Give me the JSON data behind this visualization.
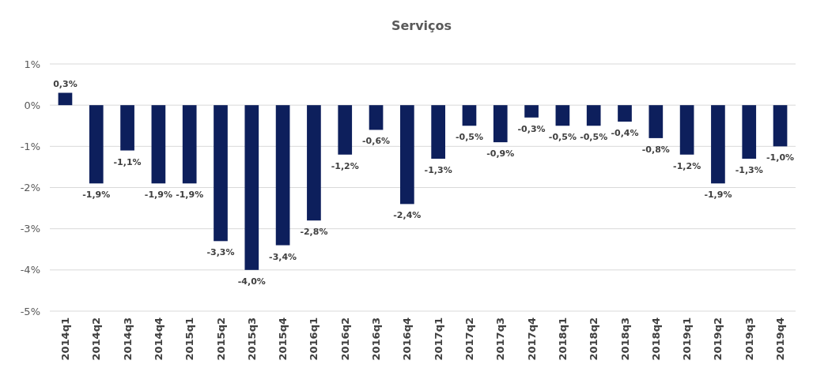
{
  "chart_data": {
    "type": "bar",
    "title": "Serviços",
    "categories": [
      "2014q1",
      "2014q2",
      "2014q3",
      "2014q4",
      "2015q1",
      "2015q2",
      "2015q3",
      "2015q4",
      "2016q1",
      "2016q2",
      "2016q3",
      "2016q4",
      "2017q1",
      "2017q2",
      "2017q3",
      "2017q4",
      "2018q1",
      "2018q2",
      "2018q3",
      "2018q4",
      "2019q1",
      "2019q2",
      "2019q3",
      "2019q4"
    ],
    "values": [
      0.3,
      -1.9,
      -1.1,
      -1.9,
      -1.9,
      -3.3,
      -4.0,
      -3.4,
      -2.8,
      -1.2,
      -0.6,
      -2.4,
      -1.3,
      -0.5,
      -0.9,
      -0.3,
      -0.5,
      -0.5,
      -0.4,
      -0.8,
      -1.2,
      -1.9,
      -1.3,
      -1.0
    ],
    "value_labels": [
      "0,3%",
      "-1,9%",
      "-1,1%",
      "-1,9%",
      "-1,9%",
      "-3,3%",
      "-4,0%",
      "-3,4%",
      "-2,8%",
      "-1,2%",
      "-0,6%",
      "-2,4%",
      "-1,3%",
      "-0,5%",
      "-0,9%",
      "-0,3%",
      "-0,5%",
      "-0,5%",
      "-0,4%",
      "-0,8%",
      "-1,2%",
      "-1,9%",
      "-1,3%",
      "-1,0%"
    ],
    "color": "#0d1f5c",
    "ylim": [
      -5,
      1
    ],
    "yticks": [
      {
        "value": 1,
        "label": "1%"
      },
      {
        "value": 0,
        "label": "0%"
      },
      {
        "value": -1,
        "label": "-1%"
      },
      {
        "value": -2,
        "label": "-2%"
      },
      {
        "value": -3,
        "label": "-3%"
      },
      {
        "value": -4,
        "label": "-4%"
      },
      {
        "value": -5,
        "label": "-5%"
      }
    ],
    "grid": "y"
  }
}
